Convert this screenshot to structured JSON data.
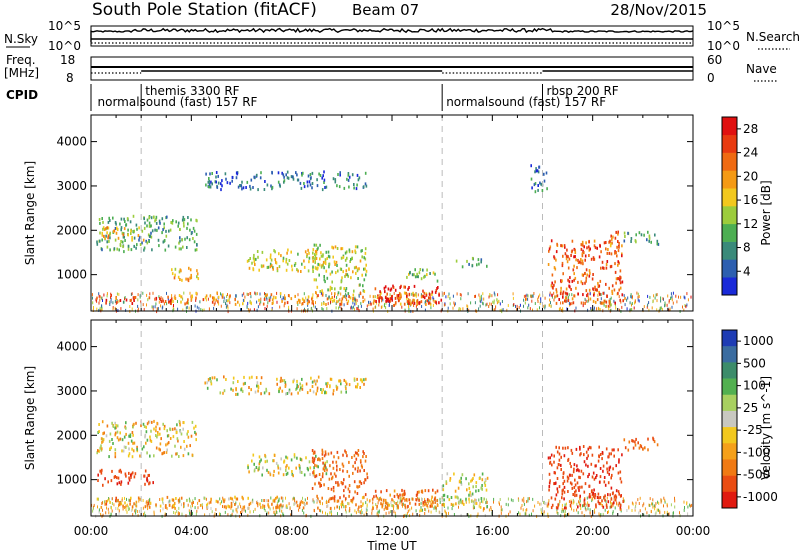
{
  "header": {
    "station": "South Pole Station (fitACF)",
    "beam": "Beam 07",
    "date": "28/Nov/2015"
  },
  "strip_panels": {
    "nsky": {
      "label": "N.Sky",
      "ticks": [
        "10^5",
        "10^0"
      ],
      "right_ticks": [
        "10^5",
        "10^0"
      ],
      "right_label": "N.Search"
    },
    "freq": {
      "label_line1": "Freq.",
      "label_line2": "[MHz]",
      "ticks": [
        "18",
        "8"
      ],
      "right_ticks": [
        "60",
        "0"
      ],
      "right_label": "Nave"
    },
    "cpid": {
      "label": "CPID",
      "segments": [
        {
          "label": "themis 3300 RF",
          "row": "upper",
          "start_hour": 2.0
        },
        {
          "label": "normalsound (fast) 157 RF",
          "row": "lower",
          "start_hour": 0.1
        },
        {
          "label": "normalsound (fast) 157 RF",
          "row": "lower",
          "start_hour": 14.0
        },
        {
          "label": "rbsp 200 RF",
          "row": "upper",
          "start_hour": 18.0
        }
      ],
      "change_hours": [
        2.0,
        14.0,
        18.0
      ]
    }
  },
  "chart_data": [
    {
      "type": "heatmap",
      "title": "",
      "xlabel": "Time UT",
      "ylabel": "Slant Range [km]",
      "xlim": [
        0,
        24
      ],
      "ylim": [
        180,
        4600
      ],
      "x_ticks": [
        "00:00",
        "04:00",
        "08:00",
        "12:00",
        "16:00",
        "20:00",
        "00:00"
      ],
      "y_ticks": [
        "1000",
        "2000",
        "3000",
        "4000"
      ],
      "y_tick_values": [
        1000,
        2000,
        3000,
        4000
      ],
      "colorbar": {
        "label": "Power [dB]",
        "ticks": [
          "4",
          "8",
          "12",
          "16",
          "20",
          "24",
          "28"
        ],
        "tick_values": [
          4,
          8,
          12,
          16,
          20,
          24,
          28
        ],
        "range": [
          0,
          30
        ],
        "colors": [
          "#1a2ad8",
          "#2d5fb0",
          "#3a8a7a",
          "#4cae52",
          "#9ccc3c",
          "#f2c81e",
          "#f59a14",
          "#ef6a12",
          "#e83a10",
          "#e01010"
        ]
      },
      "features": [
        {
          "t": [
            0.2,
            3.2
          ],
          "r": [
            380,
            520
          ],
          "v": 24
        },
        {
          "t": [
            3.0,
            13.8
          ],
          "r": [
            360,
            620
          ],
          "v": 20
        },
        {
          "t": [
            11.2,
            14.0
          ],
          "r": [
            380,
            780
          ],
          "v": 28
        },
        {
          "t": [
            0.2,
            4.2
          ],
          "r": [
            1550,
            2350
          ],
          "v": 10
        },
        {
          "t": [
            0.3,
            2.2
          ],
          "r": [
            1800,
            2100
          ],
          "v": 18
        },
        {
          "t": [
            3.0,
            4.4
          ],
          "r": [
            900,
            1200
          ],
          "v": 18
        },
        {
          "t": [
            4.5,
            11.0
          ],
          "r": [
            2950,
            3350
          ],
          "v": 6
        },
        {
          "t": [
            6.2,
            9.4
          ],
          "r": [
            1100,
            1600
          ],
          "v": 16
        },
        {
          "t": [
            8.8,
            11.0
          ],
          "r": [
            600,
            1700
          ],
          "v": 14
        },
        {
          "t": [
            12.5,
            14.0
          ],
          "r": [
            880,
            1150
          ],
          "v": 12
        },
        {
          "t": [
            14.5,
            15.8
          ],
          "r": [
            1200,
            1400
          ],
          "v": 10
        },
        {
          "t": [
            17.5,
            18.2
          ],
          "r": [
            2900,
            3500
          ],
          "v": 6
        },
        {
          "t": [
            18.2,
            21.2
          ],
          "r": [
            380,
            1800
          ],
          "v": 24
        },
        {
          "t": [
            20.5,
            21.0
          ],
          "r": [
            1600,
            2000
          ],
          "v": 22
        },
        {
          "t": [
            21.2,
            22.6
          ],
          "r": [
            1700,
            2000
          ],
          "v": 10
        }
      ]
    },
    {
      "type": "heatmap",
      "title": "",
      "xlabel": "Time UT",
      "ylabel": "Slant Range [km]",
      "xlim": [
        0,
        24
      ],
      "ylim": [
        180,
        4600
      ],
      "x_ticks": [
        "00:00",
        "04:00",
        "08:00",
        "12:00",
        "16:00",
        "20:00",
        "00:00"
      ],
      "y_ticks": [
        "1000",
        "2000",
        "3000",
        "4000"
      ],
      "y_tick_values": [
        1000,
        2000,
        3000,
        4000
      ],
      "colorbar": {
        "label": "Velocity [m s^-1]",
        "ticks": [
          "1000",
          "500",
          "100",
          "25",
          "-25",
          "-100",
          "-500",
          "-1000"
        ],
        "tick_values": [
          1000,
          500,
          100,
          25,
          -25,
          -100,
          -500,
          -1000
        ],
        "colors": [
          "#1e3cb4",
          "#3a6ca0",
          "#3c8c6a",
          "#52b050",
          "#a8d060",
          "#c8c8c0",
          "#f2c81e",
          "#f5a01a",
          "#f07a14",
          "#ea4c12",
          "#e01a10"
        ]
      },
      "features": [
        {
          "t": [
            0.2,
            3.0
          ],
          "r": [
            380,
            620
          ],
          "v": -120
        },
        {
          "t": [
            3.0,
            13.8
          ],
          "r": [
            380,
            640
          ],
          "v": -90
        },
        {
          "t": [
            11.2,
            14.0
          ],
          "r": [
            380,
            800
          ],
          "v": -200
        },
        {
          "t": [
            0.2,
            4.2
          ],
          "r": [
            1550,
            2350
          ],
          "v": 0
        },
        {
          "t": [
            0.2,
            2.5
          ],
          "r": [
            900,
            1250
          ],
          "v": -400
        },
        {
          "t": [
            4.5,
            11.0
          ],
          "r": [
            2950,
            3350
          ],
          "v": 0
        },
        {
          "t": [
            6.2,
            9.4
          ],
          "r": [
            1100,
            1600
          ],
          "v": 60
        },
        {
          "t": [
            8.8,
            11.0
          ],
          "r": [
            600,
            1700
          ],
          "v": -250
        },
        {
          "t": [
            14.0,
            15.8
          ],
          "r": [
            400,
            1200
          ],
          "v": 80
        },
        {
          "t": [
            18.2,
            21.2
          ],
          "r": [
            380,
            1800
          ],
          "v": -450
        },
        {
          "t": [
            21.2,
            22.6
          ],
          "r": [
            1700,
            2000
          ],
          "v": -300
        }
      ]
    }
  ]
}
